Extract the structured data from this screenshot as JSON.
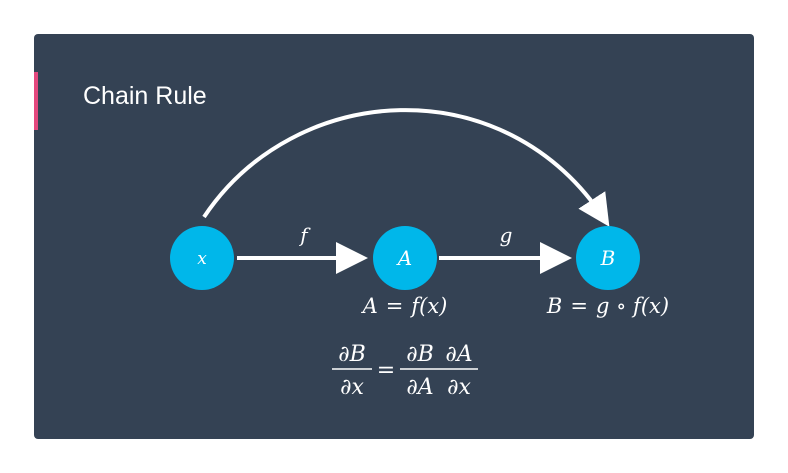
{
  "slide": {
    "title": "Chain Rule",
    "colors": {
      "background": "#344254",
      "accent": "#e3487e",
      "node": "#00b7ea",
      "foreground": "#ffffff"
    }
  },
  "diagram": {
    "nodes": [
      {
        "id": "x",
        "label": "x"
      },
      {
        "id": "A",
        "label": "A"
      },
      {
        "id": "B",
        "label": "B"
      }
    ],
    "edges": [
      {
        "from": "x",
        "to": "A",
        "label": "f"
      },
      {
        "from": "A",
        "to": "B",
        "label": "g"
      },
      {
        "from": "x",
        "to": "B",
        "label": ""
      }
    ],
    "equations": {
      "a_def_lhs": "A",
      "a_def_eq": "=",
      "a_def_rhs": "f(x)",
      "b_def_lhs": "B",
      "b_def_eq": "=",
      "b_def_rhs": "g ∘ f(x)"
    },
    "chain_rule": {
      "lhs_num": "∂B",
      "lhs_den": "∂x",
      "eq": "=",
      "r1_num": "∂B",
      "r1_den": "∂A",
      "r2_num": "∂A",
      "r2_den": "∂x"
    }
  }
}
